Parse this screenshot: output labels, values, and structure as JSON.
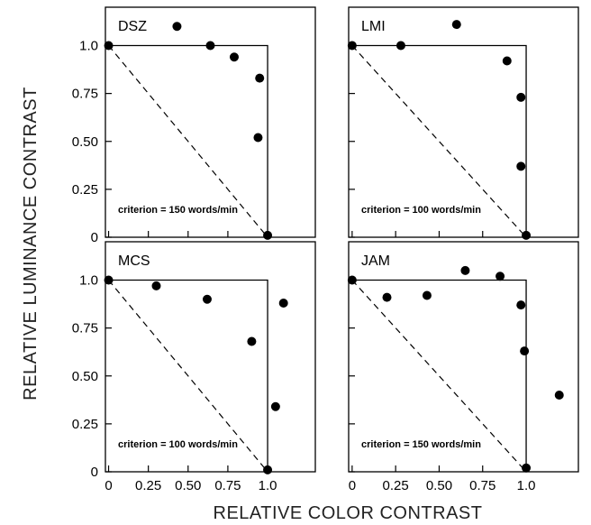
{
  "ylabel": "RELATIVE LUMINANCE CONTRAST",
  "xlabel": "RELATIVE COLOR CONTRAST",
  "y_ticks": [
    "0",
    "0.25",
    "0.50",
    "0.75",
    "1.0"
  ],
  "x_ticks": [
    "0",
    "0.25",
    "0.50",
    "0.75",
    "1.0"
  ],
  "chart_data": [
    {
      "type": "scatter",
      "panel": "DSZ",
      "criterion": "criterion = 150 words/min",
      "xlim": [
        -0.02,
        1.3
      ],
      "ylim": [
        0,
        1.2
      ],
      "x": [
        0,
        0.43,
        0.64,
        0.79,
        0.95,
        0.94,
        1.0
      ],
      "y": [
        1.0,
        1.1,
        1.0,
        0.94,
        0.83,
        0.52,
        0.01
      ],
      "reference": {
        "boundary": [
          [
            0,
            1
          ],
          [
            1,
            1
          ],
          [
            1,
            0
          ]
        ],
        "diagonal": [
          [
            0,
            1
          ],
          [
            1,
            0
          ]
        ]
      }
    },
    {
      "type": "scatter",
      "panel": "LMI",
      "criterion": "criterion = 100 words/min",
      "xlim": [
        -0.02,
        1.3
      ],
      "ylim": [
        0,
        1.2
      ],
      "x": [
        0,
        0.28,
        0.6,
        0.89,
        0.97,
        0.97,
        1.0
      ],
      "y": [
        1.0,
        1.0,
        1.11,
        0.92,
        0.73,
        0.37,
        0.01
      ],
      "reference": {
        "boundary": [
          [
            0,
            1
          ],
          [
            1,
            1
          ],
          [
            1,
            0
          ]
        ],
        "diagonal": [
          [
            0,
            1
          ],
          [
            1,
            0
          ]
        ]
      }
    },
    {
      "type": "scatter",
      "panel": "MCS",
      "criterion": "criterion = 100 words/min",
      "xlim": [
        -0.02,
        1.3
      ],
      "ylim": [
        0,
        1.2
      ],
      "x": [
        0,
        0.3,
        0.62,
        0.9,
        1.1,
        1.05,
        1.0
      ],
      "y": [
        1.0,
        0.97,
        0.9,
        0.68,
        0.88,
        0.34,
        0.01
      ],
      "reference": {
        "boundary": [
          [
            0,
            1
          ],
          [
            1,
            1
          ],
          [
            1,
            0
          ]
        ],
        "diagonal": [
          [
            0,
            1
          ],
          [
            1,
            0
          ]
        ]
      }
    },
    {
      "type": "scatter",
      "panel": "JAM",
      "criterion": "criterion = 150 words/min",
      "xlim": [
        -0.02,
        1.3
      ],
      "ylim": [
        0,
        1.2
      ],
      "x": [
        0,
        0.2,
        0.43,
        0.65,
        0.85,
        0.97,
        0.99,
        1.19,
        1.0
      ],
      "y": [
        1.0,
        0.91,
        0.92,
        1.05,
        1.02,
        0.87,
        0.63,
        0.4,
        0.02
      ],
      "reference": {
        "boundary": [
          [
            0,
            1
          ],
          [
            1,
            1
          ],
          [
            1,
            0
          ]
        ],
        "diagonal": [
          [
            0,
            1
          ],
          [
            1,
            0
          ]
        ]
      }
    }
  ]
}
